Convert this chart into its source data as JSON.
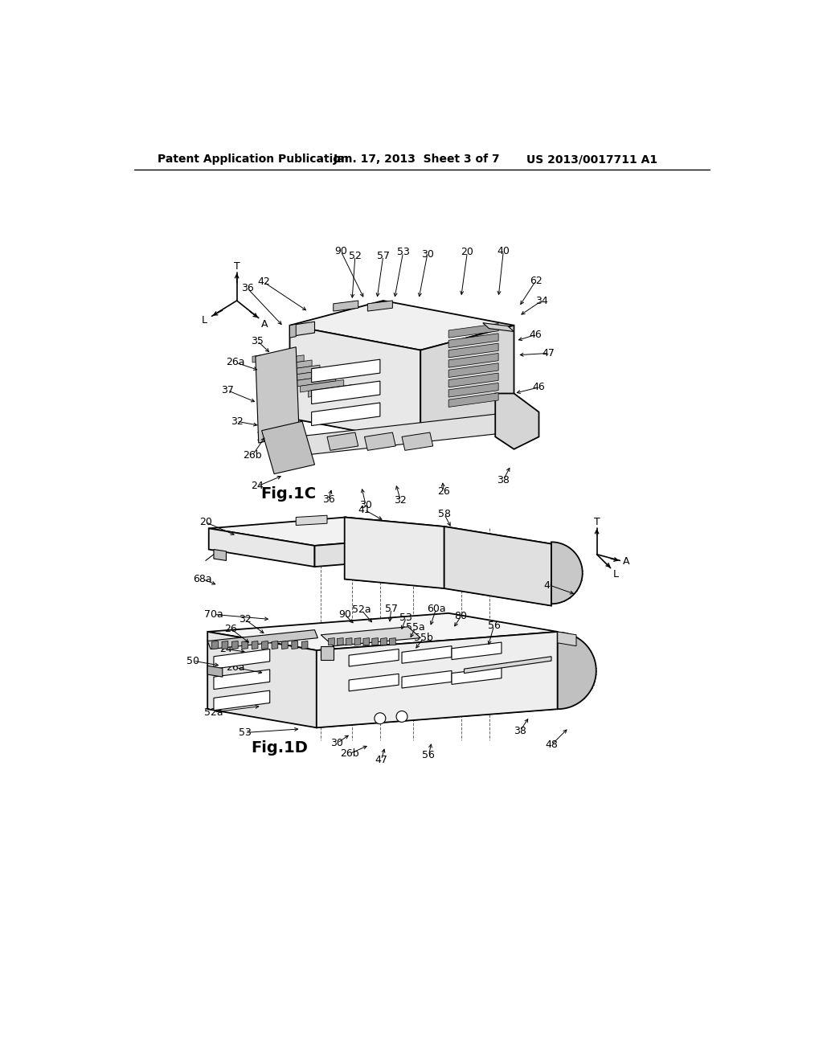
{
  "background_color": "#ffffff",
  "title_line1": "Patent Application Publication",
  "title_line2": "Jan. 17, 2013  Sheet 3 of 7",
  "title_line3": "US 2013/0017711 A1",
  "fig1c_label": "Fig.1C",
  "fig1d_label": "Fig.1D",
  "line_color": "#000000",
  "text_color": "#000000",
  "fig_label_fontsize": 14,
  "ref_fontsize": 9,
  "header_fontsize": 10,
  "lw_main": 1.3,
  "lw_detail": 0.8,
  "lw_thin": 0.5,
  "color_light": "#f5f5f5",
  "color_mid": "#e0e0e0",
  "color_dark": "#c0c0c0",
  "color_darker": "#a0a0a0",
  "color_hatch": "#888888"
}
